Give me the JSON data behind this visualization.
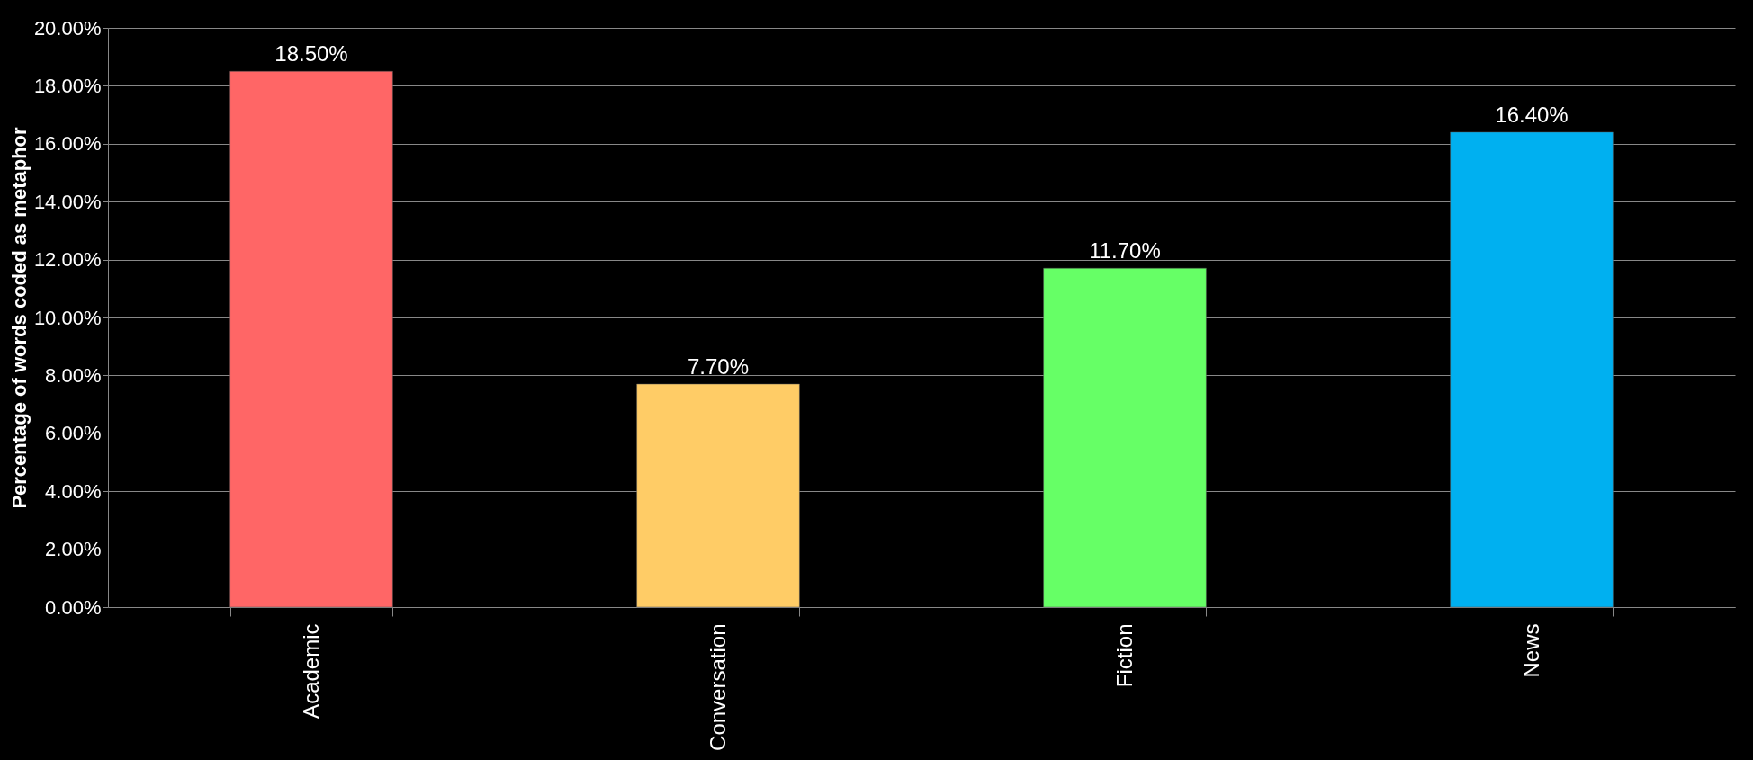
{
  "chart_data": {
    "type": "bar",
    "ylabel": "Percentage of words coded as metaphor",
    "categories": [
      "Academic",
      "Conversation",
      "Fiction",
      "News"
    ],
    "values": [
      18.5,
      7.7,
      11.7,
      16.4
    ],
    "colors": [
      "#ff6666",
      "#ffcc66",
      "#66ff66",
      "#00b0f0"
    ],
    "value_labels": [
      "18.50%",
      "7.70%",
      "11.70%",
      "16.40%"
    ],
    "ylim": [
      0,
      20
    ],
    "yticks": [
      {
        "value": 0,
        "label": "0.00%"
      },
      {
        "value": 2,
        "label": "2.00%"
      },
      {
        "value": 4,
        "label": "4.00%"
      },
      {
        "value": 6,
        "label": "6.00%"
      },
      {
        "value": 8,
        "label": "8.00%"
      },
      {
        "value": 10,
        "label": "10.00%"
      },
      {
        "value": 12,
        "label": "12.00%"
      },
      {
        "value": 14,
        "label": "14.00%"
      },
      {
        "value": 16,
        "label": "16.00%"
      },
      {
        "value": 18,
        "label": "18.00%"
      },
      {
        "value": 20,
        "label": "20.00%"
      }
    ],
    "grid": "y",
    "legend": false
  }
}
